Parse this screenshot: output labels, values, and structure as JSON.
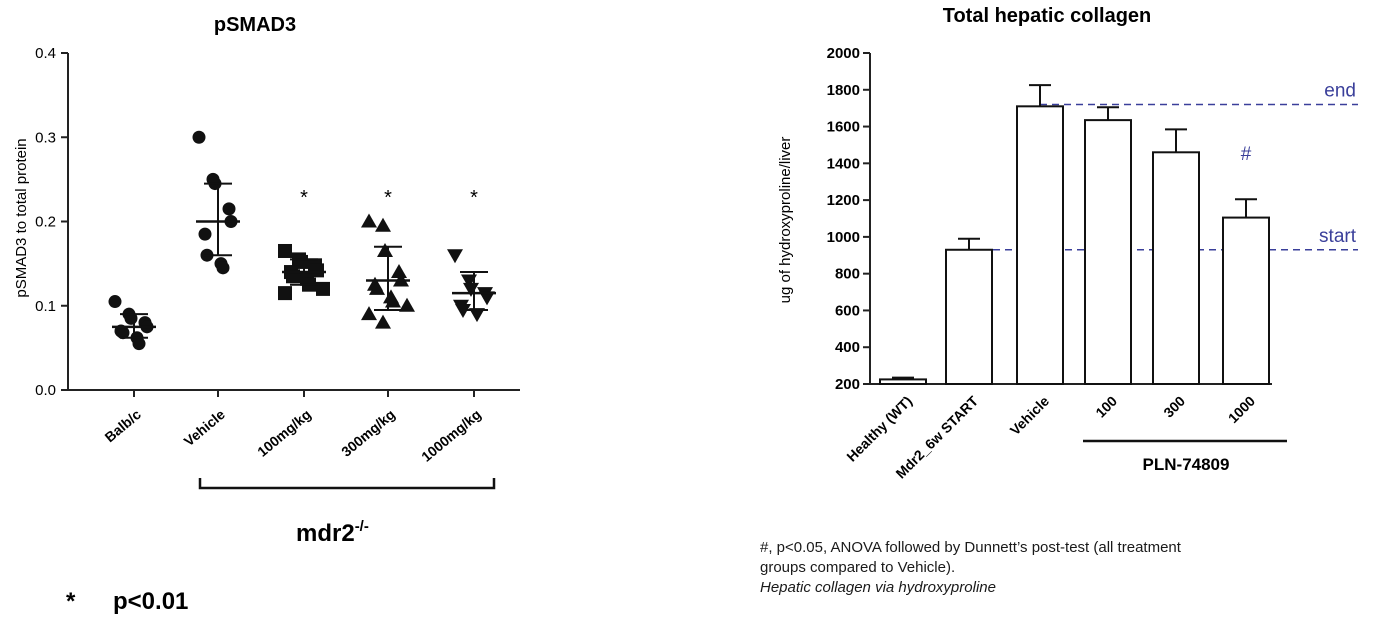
{
  "chart_data": [
    {
      "type": "scatter",
      "title": "pSMAD3",
      "ylabel": "pSMAD3 to total protein",
      "ylim": [
        0.0,
        0.4
      ],
      "yticks": [
        "0.0",
        "0.1",
        "0.2",
        "0.3",
        "0.4"
      ],
      "categories": [
        "Balb/c",
        "Vehicle",
        "100mg/kg",
        "300mg/kg",
        "1000mg/kg"
      ],
      "markers": [
        "circle",
        "circle",
        "square",
        "triangle",
        "triangle-down"
      ],
      "series": [
        {
          "category": "Balb/c",
          "mean": 0.075,
          "sd_low": 0.062,
          "sd_high": 0.09,
          "significant": false,
          "points": [
            0.105,
            0.09,
            0.085,
            0.08,
            0.075,
            0.07,
            0.068,
            0.062,
            0.055
          ]
        },
        {
          "category": "Vehicle",
          "mean": 0.2,
          "sd_low": 0.16,
          "sd_high": 0.245,
          "significant": false,
          "points": [
            0.3,
            0.25,
            0.245,
            0.215,
            0.2,
            0.185,
            0.16,
            0.15,
            0.145
          ]
        },
        {
          "category": "100mg/kg",
          "mean": 0.14,
          "sd_low": 0.125,
          "sd_high": 0.155,
          "significant": true,
          "points": [
            0.165,
            0.155,
            0.152,
            0.148,
            0.142,
            0.14,
            0.135,
            0.132,
            0.125,
            0.12,
            0.115
          ]
        },
        {
          "category": "300mg/kg",
          "mean": 0.13,
          "sd_low": 0.095,
          "sd_high": 0.17,
          "significant": true,
          "points": [
            0.2,
            0.195,
            0.165,
            0.14,
            0.13,
            0.125,
            0.12,
            0.11,
            0.105,
            0.1,
            0.09,
            0.08
          ]
        },
        {
          "category": "1000mg/kg",
          "mean": 0.115,
          "sd_low": 0.095,
          "sd_high": 0.14,
          "significant": true,
          "points": [
            0.16,
            0.13,
            0.12,
            0.115,
            0.11,
            0.1,
            0.095,
            0.09
          ]
        }
      ],
      "significance_marker": "*",
      "group_label": "mdr2",
      "group_label_sup": "-/-",
      "footnote_star": "*",
      "footnote_text": "p<0.01"
    },
    {
      "type": "bar",
      "title": "Total hepatic collagen",
      "ylabel": "ug of hydroxyproline/liver",
      "ylim": [
        200,
        2000
      ],
      "yticks": [
        "200",
        "400",
        "600",
        "800",
        "1000",
        "1200",
        "1400",
        "1600",
        "1800",
        "2000"
      ],
      "categories": [
        "Healthy (WT)",
        "Mdr2_6w START",
        "Vehicle",
        "100",
        "300",
        "1000"
      ],
      "values": [
        225,
        930,
        1710,
        1635,
        1460,
        1105
      ],
      "errors": [
        10,
        60,
        115,
        70,
        125,
        100
      ],
      "reference_lines": [
        {
          "label": "end",
          "value": 1720
        },
        {
          "label": "start",
          "value": 930
        }
      ],
      "annotation": "#",
      "group_label": "PLN-74809",
      "notes": [
        "#, p<0.05, ANOVA followed by Dunnett’s post-test (all treatment",
        "groups compared to Vehicle).",
        "Hepatic collagen via hydroxyproline"
      ]
    }
  ]
}
